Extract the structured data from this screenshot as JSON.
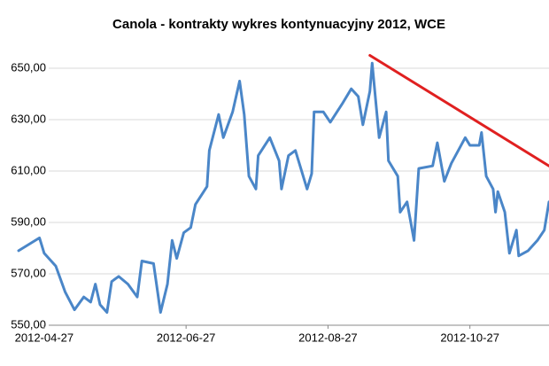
{
  "chart_data": {
    "type": "line",
    "title": "Canola - kontrakty  wykres kontynuacyjny 2012, WCE",
    "x": [
      "2012-04-16",
      "2012-04-25",
      "2012-04-27",
      "2012-05-02",
      "2012-05-06",
      "2012-05-10",
      "2012-05-14",
      "2012-05-17",
      "2012-05-19",
      "2012-05-21",
      "2012-05-24",
      "2012-05-26",
      "2012-05-29",
      "2012-06-02",
      "2012-06-06",
      "2012-06-08",
      "2012-06-13",
      "2012-06-16",
      "2012-06-19",
      "2012-06-21",
      "2012-06-23",
      "2012-06-26",
      "2012-06-29",
      "2012-07-01",
      "2012-07-06",
      "2012-07-07",
      "2012-07-11",
      "2012-07-13",
      "2012-07-17",
      "2012-07-20",
      "2012-07-22",
      "2012-07-24",
      "2012-07-27",
      "2012-07-28",
      "2012-08-02",
      "2012-08-06",
      "2012-08-07",
      "2012-08-10",
      "2012-08-13",
      "2012-08-18",
      "2012-08-20",
      "2012-08-21",
      "2012-08-25",
      "2012-08-28",
      "2012-09-02",
      "2012-09-06",
      "2012-09-09",
      "2012-09-11",
      "2012-09-14",
      "2012-09-15",
      "2012-09-18",
      "2012-09-21",
      "2012-09-22",
      "2012-09-26",
      "2012-09-27",
      "2012-09-30",
      "2012-10-03",
      "2012-10-05",
      "2012-10-11",
      "2012-10-13",
      "2012-10-16",
      "2012-10-19",
      "2012-10-25",
      "2012-10-27",
      "2012-10-31",
      "2012-11-01",
      "2012-11-03",
      "2012-11-06",
      "2012-11-07",
      "2012-11-08",
      "2012-11-11",
      "2012-11-13",
      "2012-11-16",
      "2012-11-17",
      "2012-11-21",
      "2012-11-25",
      "2012-11-28",
      "2012-11-30"
    ],
    "series": [
      {
        "color": "#4a86c8",
        "values": [
          579,
          584,
          578,
          573,
          563,
          556,
          561,
          559,
          566,
          558,
          555,
          567,
          569,
          566,
          561,
          575,
          574,
          555,
          566,
          583,
          576,
          586,
          588,
          597,
          604,
          618,
          632,
          623,
          633,
          645,
          632,
          608,
          603,
          616,
          623,
          614,
          603,
          616,
          618,
          603,
          609,
          633,
          633,
          629,
          636,
          642,
          639,
          628,
          641,
          652,
          623,
          633,
          614,
          608,
          594,
          598,
          583,
          611,
          612,
          621,
          606,
          613,
          623,
          620,
          620,
          625,
          608,
          603,
          594,
          602,
          594,
          578,
          587,
          577,
          579,
          583,
          587,
          598
        ]
      }
    ],
    "trend_line": {
      "x": [
        "2012-09-14",
        "2012-11-30"
      ],
      "values": [
        655,
        612
      ],
      "color": "#e02020"
    },
    "xlim": [
      "2012-04-16",
      "2012-11-30"
    ],
    "xticks": [
      "2012-04-27",
      "2012-06-27",
      "2012-08-27",
      "2012-10-27"
    ],
    "ylim": [
      550,
      650
    ],
    "yticks": [
      {
        "value": 550,
        "label": "550,00"
      },
      {
        "value": 570,
        "label": "570,00"
      },
      {
        "value": 590,
        "label": "590,00"
      },
      {
        "value": 610,
        "label": "610,00"
      },
      {
        "value": 630,
        "label": "630,00"
      },
      {
        "value": 650,
        "label": "650,00"
      }
    ],
    "grid": true
  }
}
